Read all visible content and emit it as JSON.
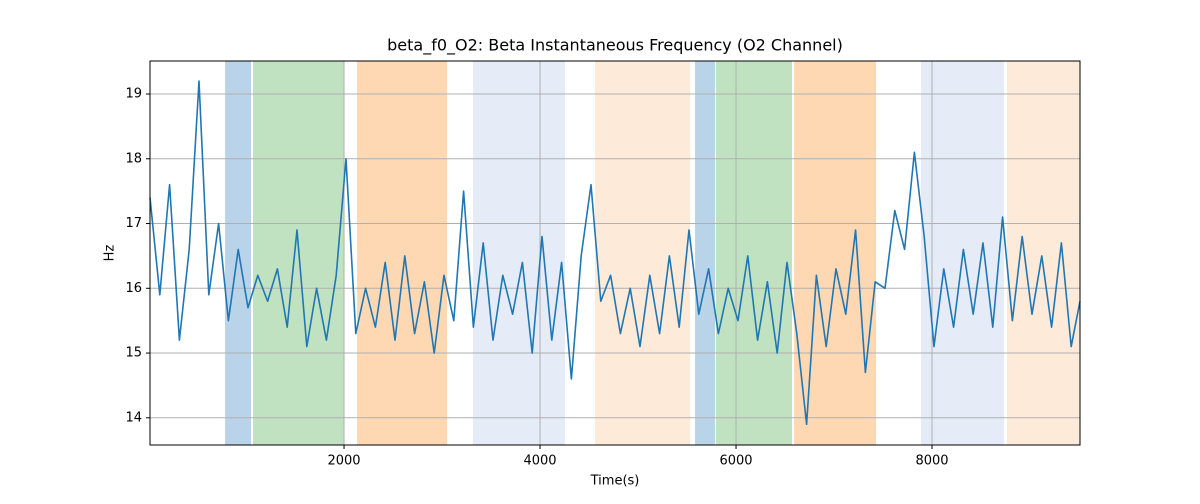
{
  "chart_data": {
    "type": "line",
    "title": "beta_f0_O2: Beta Instantaneous Frequency (O2 Channel)",
    "xlabel": "Time(s)",
    "ylabel": "Hz",
    "x": [
      20,
      120,
      220,
      320,
      420,
      520,
      620,
      720,
      820,
      920,
      1020,
      1120,
      1220,
      1320,
      1420,
      1520,
      1620,
      1720,
      1820,
      1920,
      2020,
      2120,
      2220,
      2320,
      2420,
      2520,
      2620,
      2720,
      2820,
      2920,
      3020,
      3120,
      3220,
      3320,
      3420,
      3520,
      3620,
      3720,
      3820,
      3920,
      4020,
      4120,
      4220,
      4320,
      4420,
      4520,
      4620,
      4720,
      4820,
      4920,
      5020,
      5120,
      5220,
      5320,
      5420,
      5520,
      5620,
      5720,
      5820,
      5920,
      6020,
      6120,
      6220,
      6320,
      6420,
      6520,
      6620,
      6720,
      6820,
      6920,
      7020,
      7120,
      7220,
      7320,
      7420,
      7520,
      7620,
      7720,
      7820,
      7920,
      8020,
      8120,
      8220,
      8320,
      8420,
      8520,
      8620,
      8720,
      8820,
      8920,
      9020,
      9120,
      9220,
      9320,
      9420,
      9510
    ],
    "values": [
      17.4,
      15.9,
      17.6,
      15.2,
      16.6,
      19.2,
      15.9,
      17.0,
      15.5,
      16.6,
      15.7,
      16.2,
      15.8,
      16.3,
      15.4,
      16.9,
      15.1,
      16.0,
      15.2,
      16.2,
      18.0,
      15.3,
      16.0,
      15.4,
      16.4,
      15.2,
      16.5,
      15.3,
      16.1,
      15.0,
      16.2,
      15.5,
      17.5,
      15.4,
      16.7,
      15.2,
      16.2,
      15.6,
      16.4,
      15.0,
      16.8,
      15.2,
      16.4,
      14.6,
      16.5,
      17.6,
      15.8,
      16.2,
      15.3,
      16.0,
      15.1,
      16.2,
      15.3,
      16.5,
      15.4,
      16.9,
      15.6,
      16.3,
      15.3,
      16.0,
      15.5,
      16.5,
      15.2,
      16.1,
      15.0,
      16.4,
      15.3,
      13.9,
      16.2,
      15.1,
      16.3,
      15.6,
      16.9,
      14.7,
      16.1,
      16.0,
      17.2,
      16.6,
      18.1,
      16.8,
      15.1,
      16.3,
      15.4,
      16.6,
      15.6,
      16.7,
      15.4,
      17.1,
      15.5,
      16.8,
      15.6,
      16.5,
      15.4,
      16.7,
      15.1,
      15.8
    ],
    "color": "#1f77b4",
    "spans": [
      {
        "x": [
          786,
          1051
        ],
        "color": "#b9d3e8"
      },
      {
        "x": [
          1071,
          2000
        ],
        "color": "#c0e2c0"
      },
      {
        "x": [
          2133,
          3051
        ],
        "color": "#fed8b3"
      },
      {
        "x": [
          3316,
          4255
        ],
        "color": "#e5ecf7"
      },
      {
        "x": [
          4561,
          5531
        ],
        "color": "#feead8"
      },
      {
        "x": [
          5582,
          5786
        ],
        "color": "#b9d3e8"
      },
      {
        "x": [
          5796,
          6571
        ],
        "color": "#c0e2c0"
      },
      {
        "x": [
          6592,
          7429
        ],
        "color": "#fed8b3"
      },
      {
        "x": [
          7888,
          8735
        ],
        "color": "#e5ecf7"
      },
      {
        "x": [
          8765,
          9510
        ],
        "color": "#feead8"
      }
    ],
    "xlim": [
      20,
      9510
    ],
    "ylim": [
      13.58,
      19.51
    ],
    "xticks": [
      2000,
      4000,
      6000,
      8000
    ],
    "yticks": [
      14,
      15,
      16,
      17,
      18,
      19
    ],
    "grid": true
  }
}
